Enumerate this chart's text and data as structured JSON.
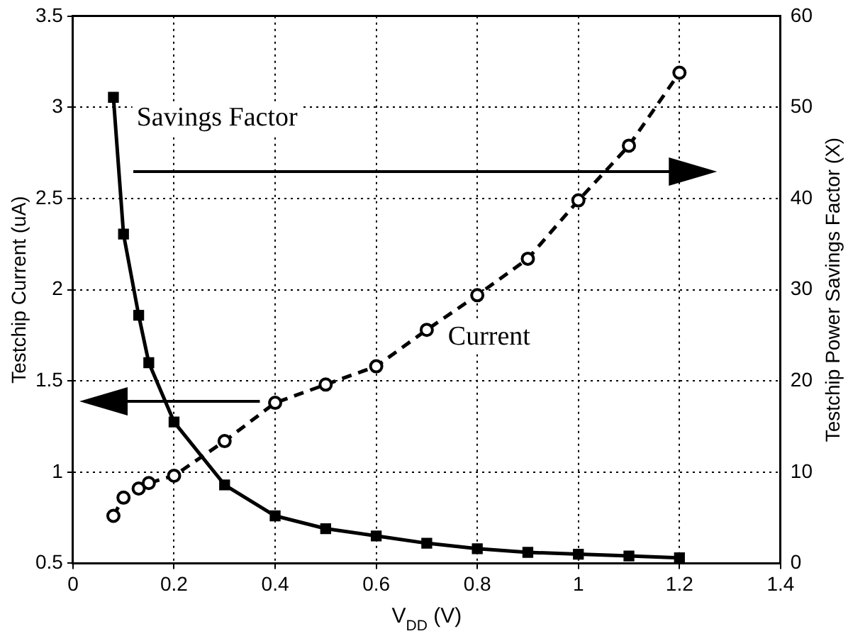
{
  "chart_data": {
    "type": "line",
    "xlabel": "V$_{DD}$ (V)",
    "ylabel": "Testchip Current (uA)",
    "y2label": "Testchip Power Savings Factor (X)",
    "xlim": [
      0,
      1.4
    ],
    "xticks": [
      0,
      0.2,
      0.4,
      0.6,
      0.8,
      1,
      1.2,
      1.4
    ],
    "ylim": [
      0.5,
      3.5
    ],
    "yticks": [
      0.5,
      1,
      1.5,
      2,
      2.5,
      3,
      3.5
    ],
    "y2lim": [
      0,
      60
    ],
    "y2ticks": [
      0,
      10,
      20,
      30,
      40,
      50,
      60
    ],
    "grid": true,
    "legend": false,
    "series": [
      {
        "name": "Savings Factor",
        "axis": "y2",
        "color": "#000000",
        "marker": "square",
        "line_style": "solid",
        "x": [
          0.08,
          0.1,
          0.13,
          0.15,
          0.2,
          0.3,
          0.4,
          0.5,
          0.6,
          0.7,
          0.8,
          0.9,
          1,
          1.1,
          1.2
        ],
        "values": [
          51.1,
          36.1,
          27.2,
          22.0,
          15.5,
          8.6,
          5.2,
          3.8,
          3.0,
          2.2,
          1.6,
          1.2,
          1.0,
          0.8,
          0.6
        ]
      },
      {
        "name": "Current",
        "axis": "y",
        "color": "#000000",
        "marker": "circle",
        "line_style": "dashed",
        "x": [
          0.08,
          0.1,
          0.13,
          0.15,
          0.2,
          0.3,
          0.4,
          0.5,
          0.6,
          0.7,
          0.8,
          0.9,
          1,
          1.1,
          1.2
        ],
        "values": [
          0.76,
          0.86,
          0.91,
          0.94,
          0.98,
          1.17,
          1.38,
          1.48,
          1.58,
          1.78,
          1.97,
          2.17,
          2.49,
          2.79,
          3.19
        ]
      }
    ]
  }
}
